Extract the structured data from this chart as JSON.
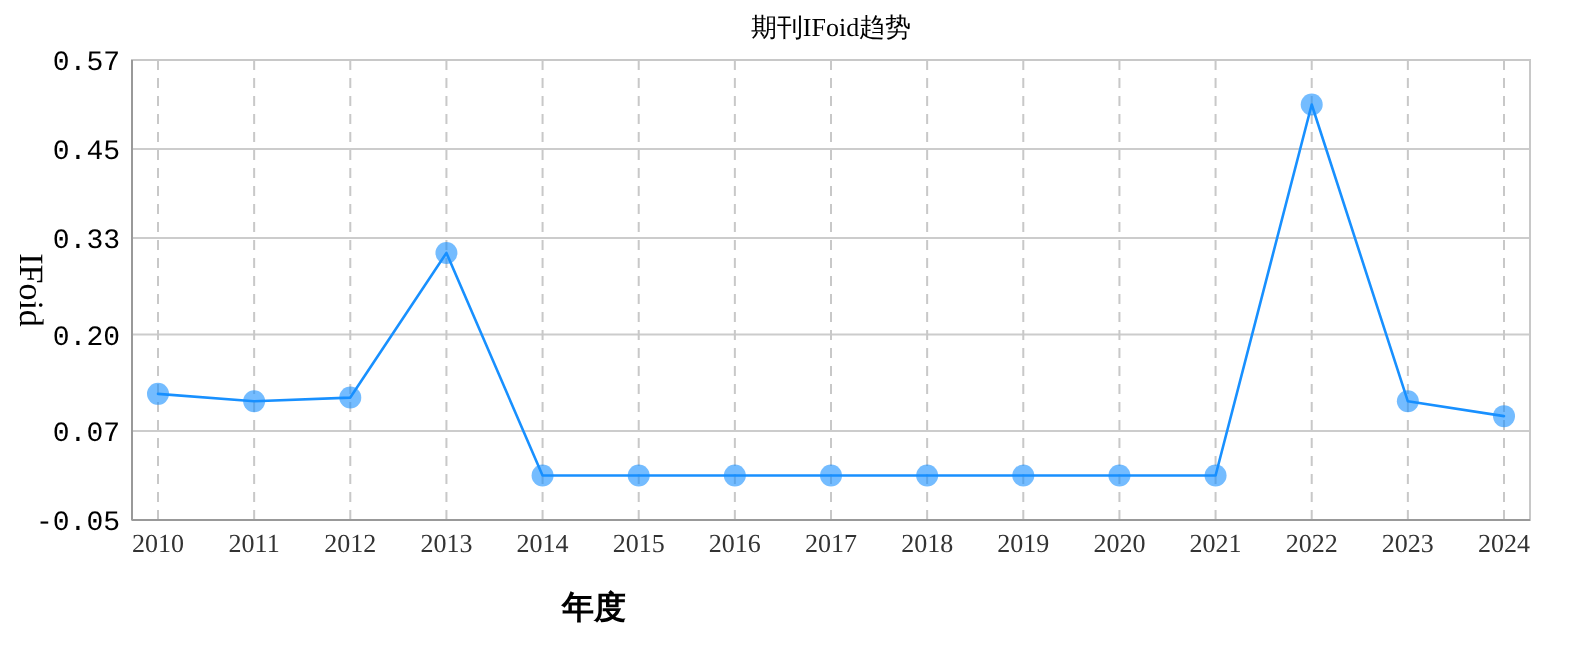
{
  "chart_data": {
    "type": "line",
    "title": "期刊IFoid趋势",
    "xlabel": "年度",
    "ylabel": "IFoid",
    "categories": [
      "2010",
      "2011",
      "2012",
      "2013",
      "2014",
      "2015",
      "2016",
      "2017",
      "2018",
      "2019",
      "2020",
      "2021",
      "2022",
      "2023",
      "2024"
    ],
    "series": [
      {
        "color": "#1890ff",
        "values": [
          0.12,
          0.11,
          0.115,
          0.31,
          0.01,
          0.01,
          0.01,
          0.01,
          0.01,
          0.01,
          0.01,
          0.01,
          0.51,
          0.11,
          0.09
        ]
      }
    ],
    "ylim": [
      -0.05,
      0.57
    ],
    "yticks": [
      -0.05,
      0.07,
      {
        "value": 0.2,
        "label": "0.20"
      },
      0.33,
      0.45,
      0.57
    ],
    "grid": true,
    "marker": "circle",
    "line_style": "solid"
  }
}
